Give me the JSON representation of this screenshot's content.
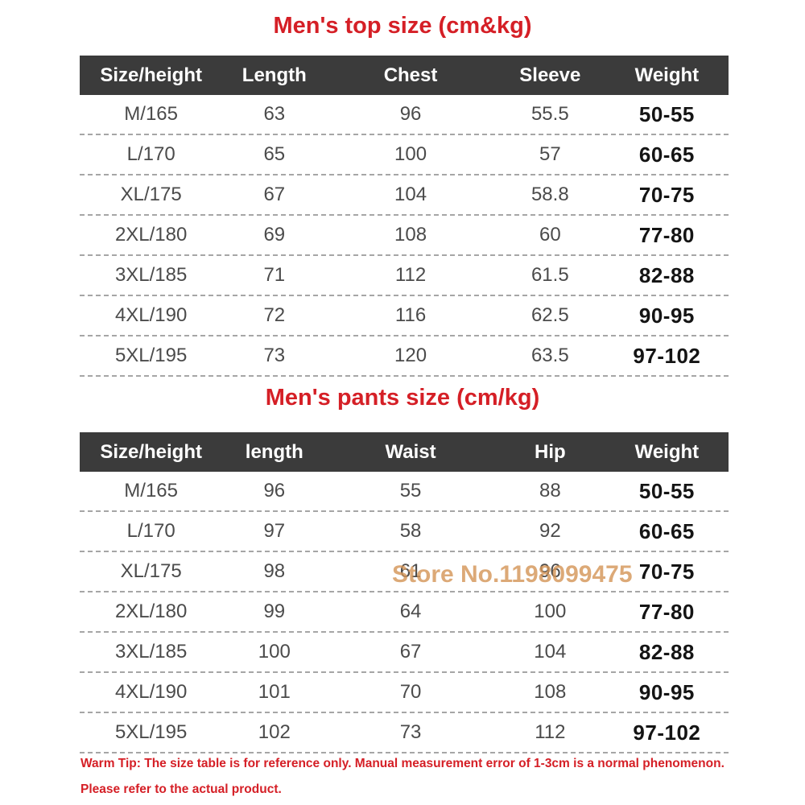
{
  "top_table": {
    "title": "Men's top size (cm&kg)",
    "headers": [
      "Size/height",
      "Length",
      "Chest",
      "Sleeve",
      "Weight"
    ],
    "rows": [
      [
        "M/165",
        "63",
        "96",
        "55.5",
        "50-55"
      ],
      [
        "L/170",
        "65",
        "100",
        "57",
        "60-65"
      ],
      [
        "XL/175",
        "67",
        "104",
        "58.8",
        "70-75"
      ],
      [
        "2XL/180",
        "69",
        "108",
        "60",
        "77-80"
      ],
      [
        "3XL/185",
        "71",
        "112",
        "61.5",
        "82-88"
      ],
      [
        "4XL/190",
        "72",
        "116",
        "62.5",
        "90-95"
      ],
      [
        "5XL/195",
        "73",
        "120",
        "63.5",
        "97-102"
      ]
    ]
  },
  "pants_table": {
    "title": "Men's pants size (cm/kg)",
    "headers": [
      "Size/height",
      "length",
      "Waist",
      "Hip",
      "Weight"
    ],
    "rows": [
      [
        "M/165",
        "96",
        "55",
        "88",
        "50-55"
      ],
      [
        "L/170",
        "97",
        "58",
        "92",
        "60-65"
      ],
      [
        "XL/175",
        "98",
        "61",
        "96",
        "70-75"
      ],
      [
        "2XL/180",
        "99",
        "64",
        "100",
        "77-80"
      ],
      [
        "3XL/185",
        "100",
        "67",
        "104",
        "82-88"
      ],
      [
        "4XL/190",
        "101",
        "70",
        "108",
        "90-95"
      ],
      [
        "5XL/195",
        "102",
        "73",
        "112",
        "97-102"
      ]
    ]
  },
  "watermark": "Store No.1198099475",
  "footer": {
    "warm_tip": "Warm Tip: The size table is for reference only. Manual measurement error of 1-3cm is a normal phenomenon.",
    "refer": "Please refer to the actual product."
  },
  "colors": {
    "title_red": "#d51f26",
    "header_bg": "#3b3b3b",
    "header_text": "#ffffff",
    "cell_text": "#4b4b4b",
    "weight_text": "#141414",
    "divider": "#a6a6a6",
    "watermark": "#d39355"
  }
}
